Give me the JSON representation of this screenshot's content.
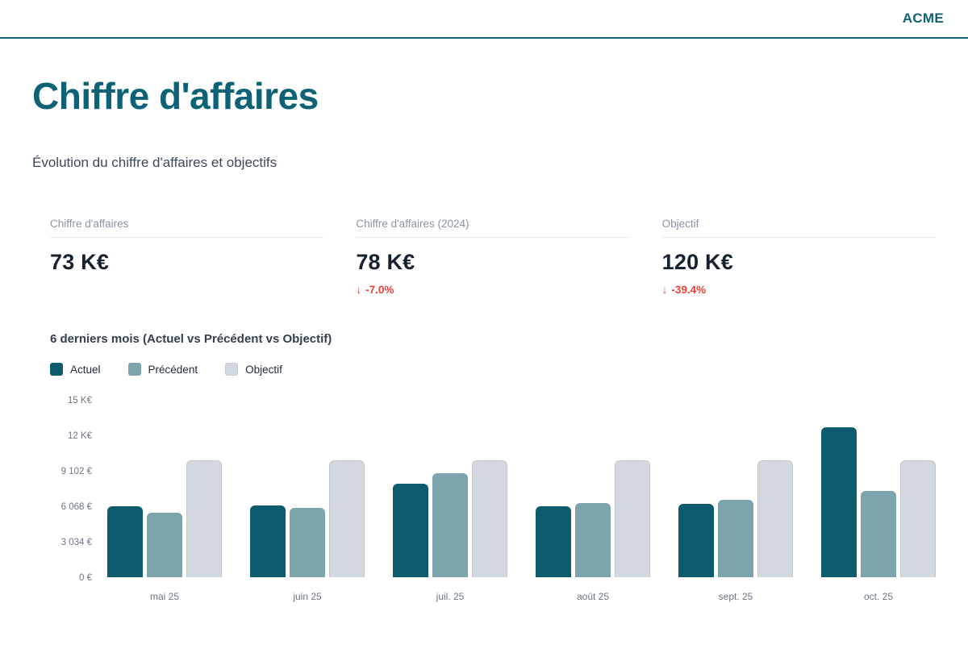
{
  "header": {
    "brand": "ACME"
  },
  "page": {
    "title": "Chiffre d'affaires",
    "subtitle": "Évolution du chiffre d'affaires et objectifs"
  },
  "kpis": [
    {
      "label": "Chiffre d'affaires",
      "value": "73 K€",
      "delta_arrow": "",
      "delta": ""
    },
    {
      "label": "Chiffre d'affaires (2024)",
      "value": "78 K€",
      "delta_arrow": "↓",
      "delta": "-7.0%"
    },
    {
      "label": "Objectif",
      "value": "120 K€",
      "delta_arrow": "↓",
      "delta": "-39.4%"
    }
  ],
  "chart": {
    "title": "6 derniers mois (Actuel vs Précédent vs Objectif)",
    "legend": [
      {
        "label": "Actuel",
        "color": "#0d5c6e"
      },
      {
        "label": "Précédent",
        "color": "#7ba4ad"
      },
      {
        "label": "Objectif",
        "color": "#d3d7de"
      }
    ]
  },
  "chart_data": {
    "type": "bar",
    "title": "6 derniers mois (Actuel vs Précédent vs Objectif)",
    "categories": [
      "mai 25",
      "juin 25",
      "juil. 25",
      "août 25",
      "sept. 25",
      "oct. 25"
    ],
    "series": [
      {
        "name": "Actuel",
        "color": "#0d5c6e",
        "values": [
          6100,
          6150,
          8000,
          6050,
          6250,
          12800
        ]
      },
      {
        "name": "Précédent",
        "color": "#7ba4ad",
        "values": [
          5500,
          5900,
          8900,
          6350,
          6650,
          7350
        ]
      },
      {
        "name": "Objectif",
        "color": "#d3d7de",
        "values": [
          10000,
          10000,
          10000,
          10000,
          10000,
          10000
        ]
      }
    ],
    "ylim": [
      0,
      15170
    ],
    "yticks": [
      {
        "value": 15170,
        "label": "15 K€"
      },
      {
        "value": 12136,
        "label": "12 K€"
      },
      {
        "value": 9102,
        "label": "9 102 €"
      },
      {
        "value": 6068,
        "label": "6 068 €"
      },
      {
        "value": 3034,
        "label": "3 034 €"
      },
      {
        "value": 0,
        "label": "0 €"
      }
    ],
    "grid": false,
    "legend_position": "top-left",
    "xlabel": "",
    "ylabel": ""
  },
  "colors": {
    "brand_teal": "#0d6375",
    "value_dark": "#18212f",
    "label_gray": "#8b93a3",
    "delta_red": "#e8413c",
    "axis_gray": "#6e7684",
    "objectif_border": "#b5bbc6"
  }
}
